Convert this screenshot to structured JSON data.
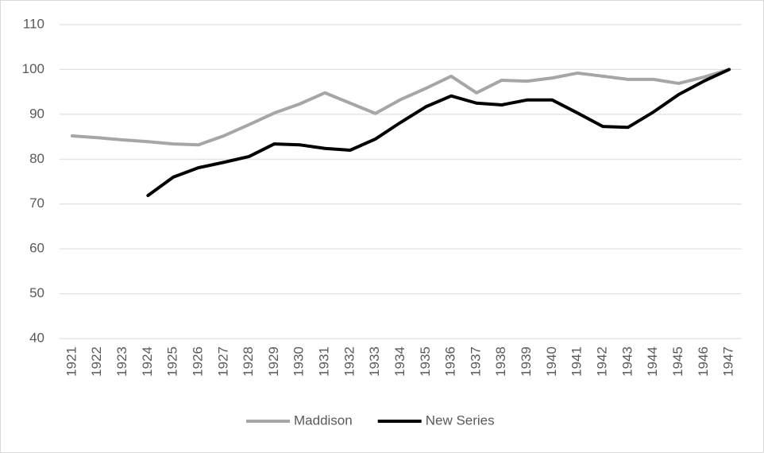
{
  "chart_data": {
    "type": "line",
    "categories": [
      "1921",
      "1922",
      "1923",
      "1924",
      "1925",
      "1926",
      "1927",
      "1928",
      "1929",
      "1930",
      "1931",
      "1932",
      "1933",
      "1934",
      "1935",
      "1936",
      "1937",
      "1938",
      "1939",
      "1940",
      "1941",
      "1942",
      "1943",
      "1944",
      "1945",
      "1946",
      "1947"
    ],
    "series": [
      {
        "name": "Maddison",
        "color": "#a6a6a6",
        "values": [
          85.2,
          84.8,
          84.3,
          83.9,
          83.4,
          83.2,
          85.2,
          87.7,
          90.3,
          92.3,
          94.8,
          92.5,
          90.2,
          93.3,
          95.8,
          98.5,
          94.8,
          97.6,
          97.4,
          98.1,
          99.2,
          98.5,
          97.8,
          97.8,
          96.9,
          98.3,
          100
        ]
      },
      {
        "name": "New Series",
        "color": "#000000",
        "values": [
          null,
          null,
          null,
          71.9,
          76,
          78.1,
          79.3,
          80.6,
          83.4,
          83.2,
          82.4,
          82,
          84.5,
          88.2,
          91.7,
          94.1,
          92.5,
          92.1,
          93.2,
          93.2,
          90.3,
          87.3,
          87.1,
          90.5,
          94.4,
          97.4,
          100
        ]
      }
    ],
    "ylim": [
      40,
      110
    ],
    "yticks": [
      40,
      50,
      60,
      70,
      80,
      90,
      100,
      110
    ],
    "grid": true,
    "legend": "bottom"
  }
}
